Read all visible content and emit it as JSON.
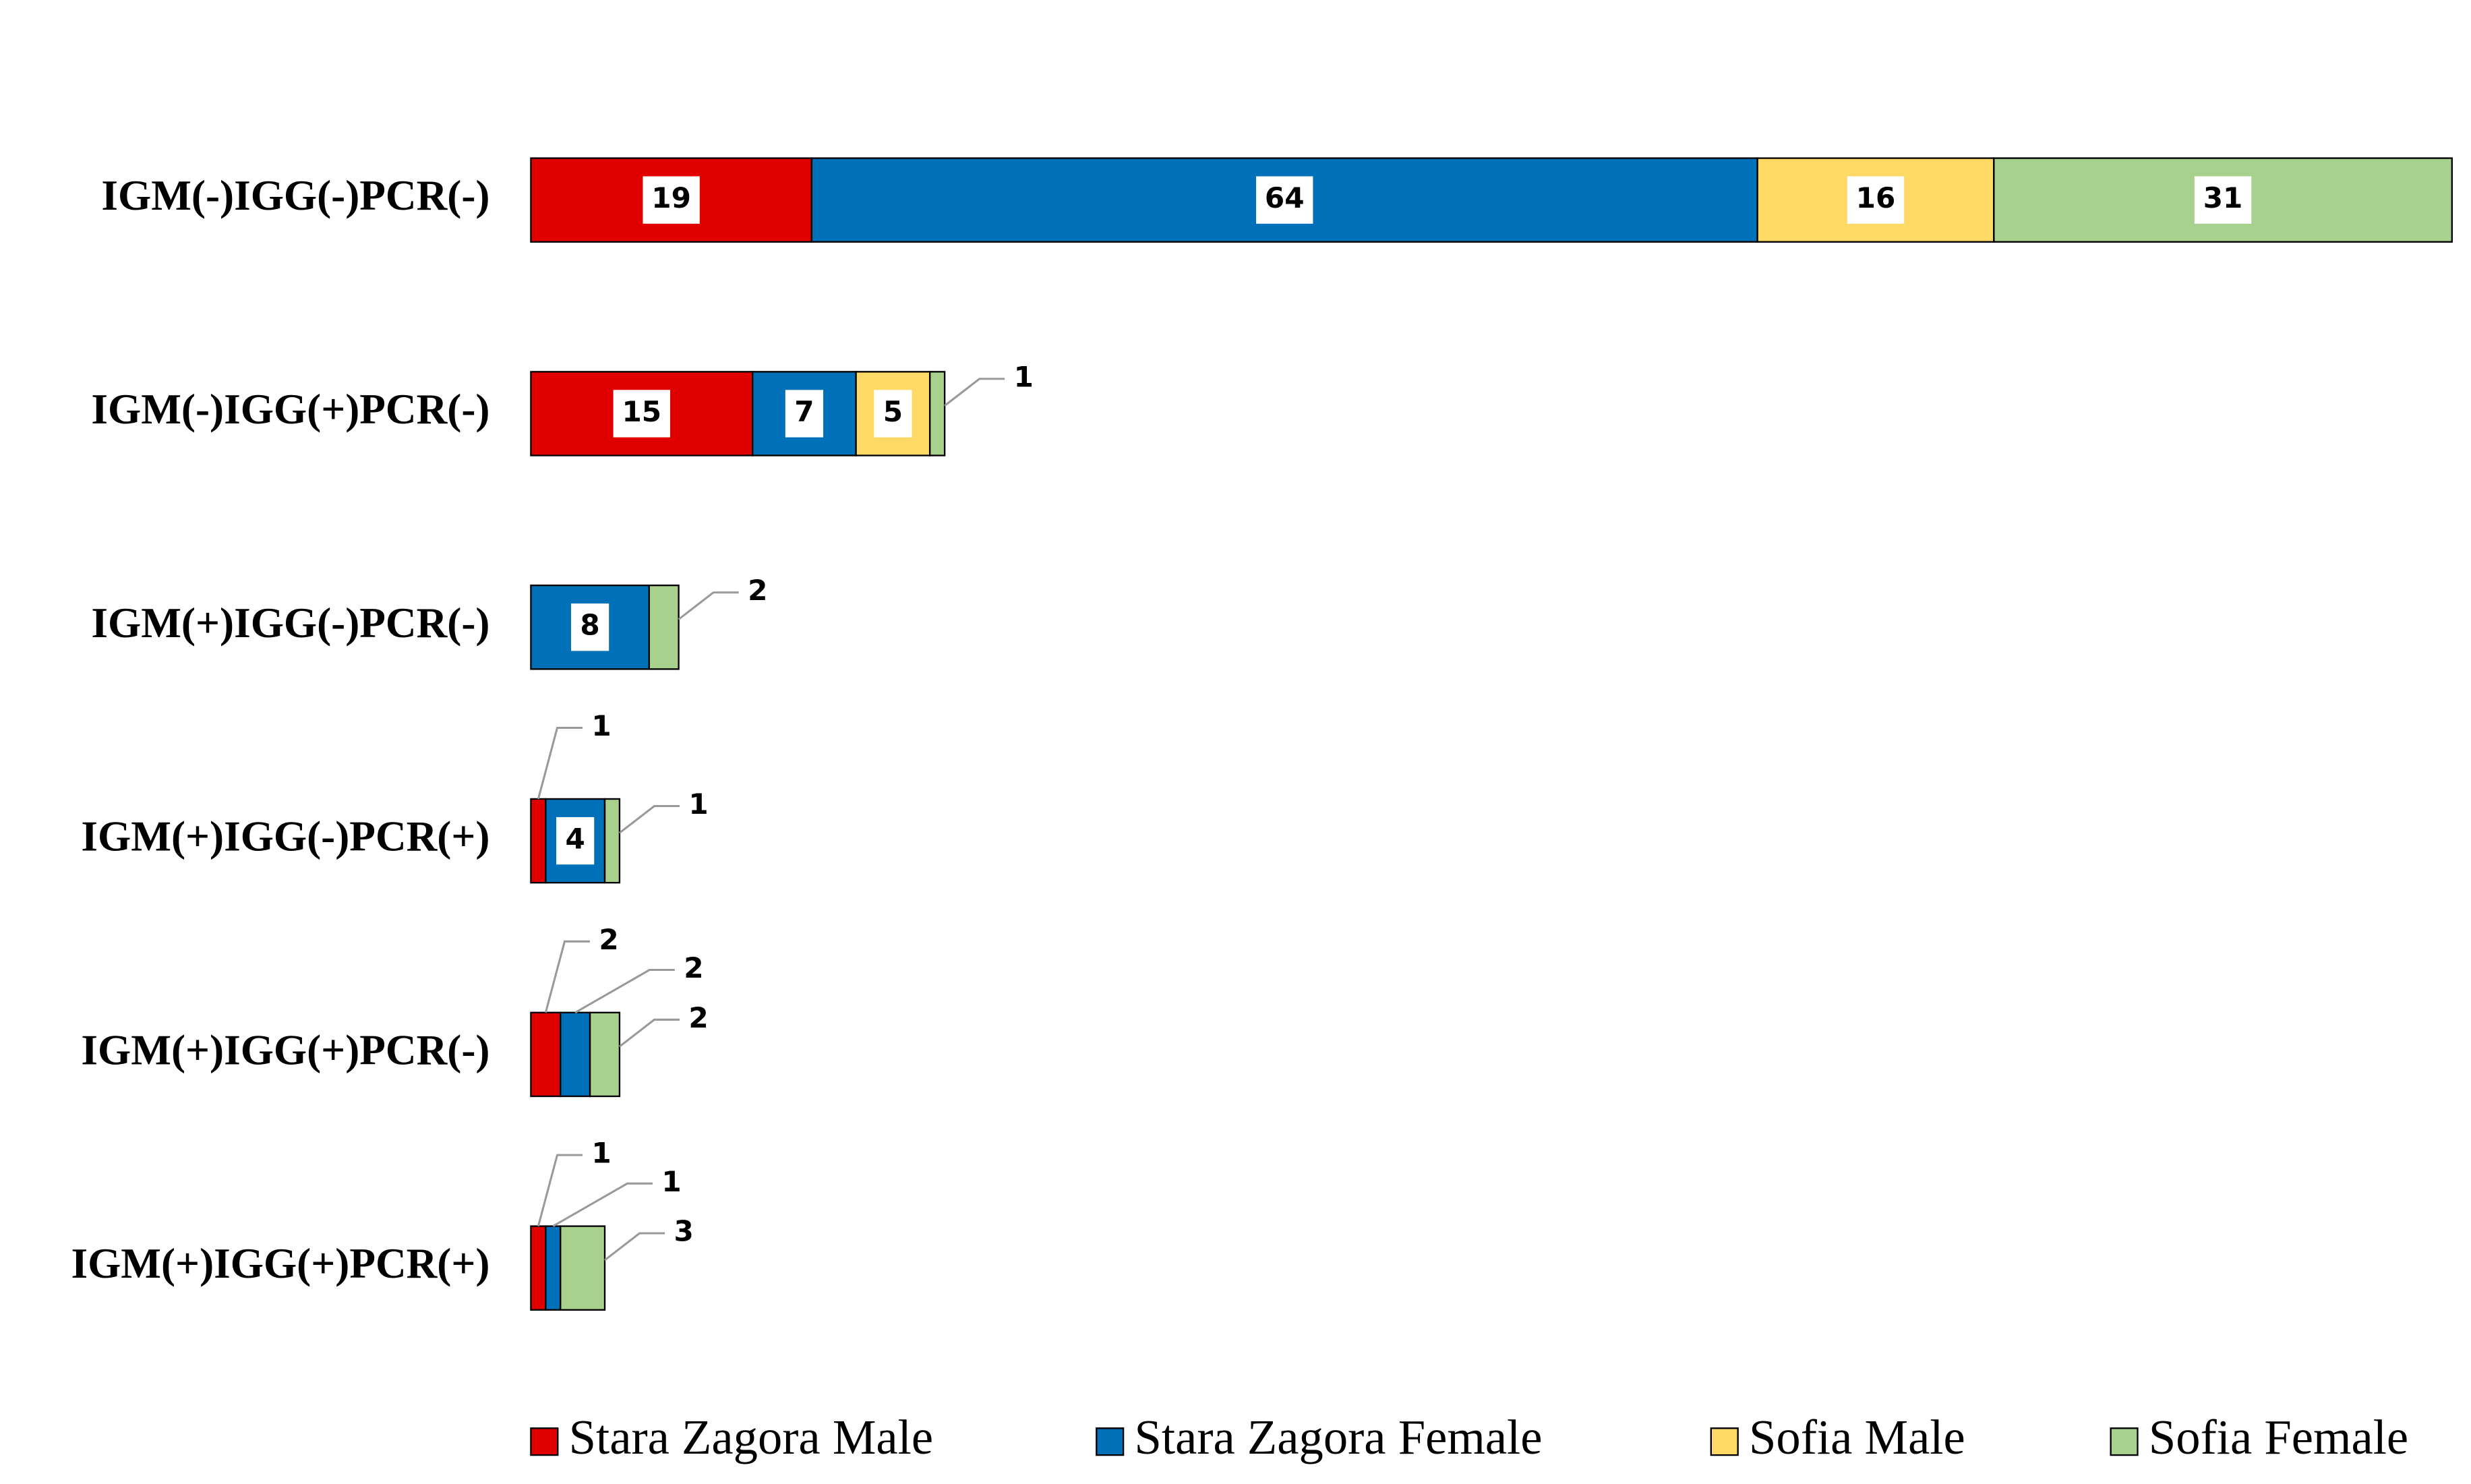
{
  "chart_data": {
    "type": "stacked_barh",
    "categories": [
      "IGM(-)IGG(-)PCR(-)",
      "IGM(-)IGG(+)PCR(-)",
      "IGM(+)IGG(-)PCR(-)",
      "IGM(+)IGG(-)PCR(+)",
      "IGM(+)IGG(+)PCR(-)",
      "IGM(+)IGG(+)PCR(+)"
    ],
    "series": [
      {
        "name": "Stara Zagora Male",
        "color": "#e00000",
        "values": [
          19,
          15,
          null,
          1,
          2,
          1
        ]
      },
      {
        "name": "Stara Zagora Female",
        "color": "#0070b8",
        "values": [
          64,
          7,
          8,
          4,
          2,
          1
        ]
      },
      {
        "name": "Sofia Male",
        "color": "#ffd966",
        "values": [
          16,
          5,
          null,
          null,
          null,
          null
        ]
      },
      {
        "name": "Sofia Female",
        "color": "#a9d18e",
        "values": [
          31,
          1,
          2,
          1,
          2,
          3
        ]
      }
    ],
    "xlim": [
      0,
      130
    ],
    "legend": "bottom"
  }
}
